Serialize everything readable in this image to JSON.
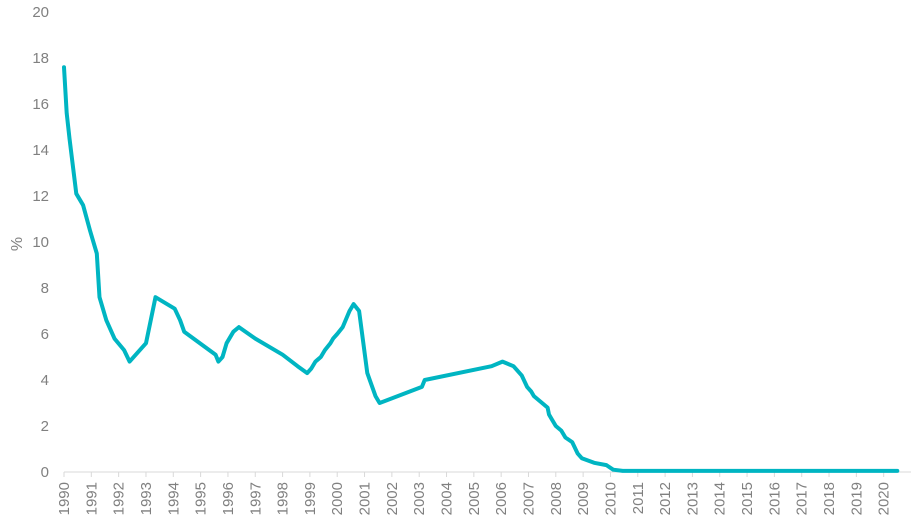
{
  "chart_data": {
    "type": "line",
    "title": "",
    "xlabel": "",
    "ylabel": "%",
    "ylim": [
      0,
      20
    ],
    "xlim": [
      1990.0,
      2021.0
    ],
    "grid": false,
    "y_ticks": [
      "0",
      "2",
      "4",
      "6",
      "8",
      "10",
      "12",
      "14",
      "16",
      "18",
      "20"
    ],
    "x_ticks": [
      "1990",
      "1991",
      "1992",
      "1993",
      "1994",
      "1995",
      "1996",
      "1997",
      "1998",
      "1999",
      "2000",
      "2001",
      "2002",
      "2003",
      "2004",
      "2005",
      "2006",
      "2007",
      "2008",
      "2009",
      "2010",
      "2011",
      "2012",
      "2013",
      "2014",
      "2015",
      "2016",
      "2017",
      "2018",
      "2019",
      "2020"
    ],
    "colors": {
      "line": "#00B5C2",
      "axis": "#D9D9D9",
      "text": "#808080"
    },
    "series": [
      {
        "name": "",
        "x": [
          1990.0,
          1990.1,
          1990.2,
          1990.45,
          1990.7,
          1990.95,
          1991.2,
          1991.3,
          1991.55,
          1991.85,
          1992.2,
          1992.4,
          1993.0,
          1993.35,
          1994.05,
          1994.25,
          1994.4,
          1995.55,
          1995.65,
          1995.8,
          1995.95,
          1996.2,
          1996.4,
          1997.0,
          1998.0,
          1998.55,
          1998.9,
          1999.05,
          1999.2,
          1999.3,
          1999.4,
          1999.55,
          1999.75,
          1999.85,
          2000.0,
          2000.2,
          2000.45,
          2000.6,
          2000.8,
          2001.1,
          2001.4,
          2001.55,
          2003.1,
          2003.2,
          2005.65,
          2006.05,
          2006.45,
          2006.75,
          2006.95,
          2007.1,
          2007.2,
          2007.5,
          2007.7,
          2007.75,
          2007.85,
          2008.0,
          2008.2,
          2008.35,
          2008.6,
          2008.8,
          2008.95,
          2009.4,
          2009.85,
          2010.1,
          2010.45,
          2010.6,
          2010.7,
          2011.0,
          2011.3,
          2012.0,
          2012.75,
          2012.9,
          2013.15,
          2013.4,
          2013.65,
          2014.05,
          2014.3,
          2014.7,
          2015.0,
          2015.35,
          2018.7,
          2018.85,
          2019.0,
          2019.2,
          2019.4,
          2019.5,
          2020.5
        ],
        "values": [
          17.6,
          15.6,
          14.5,
          12.1,
          11.6,
          10.5,
          9.5,
          7.6,
          6.6,
          5.8,
          5.3,
          4.8,
          5.6,
          7.6,
          7.1,
          6.6,
          6.1,
          5.1,
          4.8,
          5.0,
          5.6,
          6.1,
          6.3,
          5.8,
          5.1,
          4.6,
          4.3,
          4.5,
          4.8,
          4.9,
          5.0,
          5.3,
          5.6,
          5.8,
          6.0,
          6.3,
          7.0,
          7.3,
          7.0,
          4.3,
          3.3,
          3.0,
          3.7,
          4.0,
          4.6,
          4.8,
          4.6,
          4.2,
          3.7,
          3.5,
          3.3,
          3.0,
          2.8,
          2.5,
          2.3,
          2.0,
          1.8,
          1.5,
          1.3,
          0.8,
          0.6,
          0.4,
          0.3,
          0.1,
          0.05,
          0.05,
          0.05,
          0.05,
          0.05,
          0.05,
          0.05,
          0.05,
          0.05,
          0.05,
          0.05,
          0.05,
          0.05,
          0.05,
          0.05,
          0.05,
          0.05,
          0.05,
          0.05,
          0.05,
          0.05,
          0.05,
          0.05
        ]
      }
    ]
  }
}
